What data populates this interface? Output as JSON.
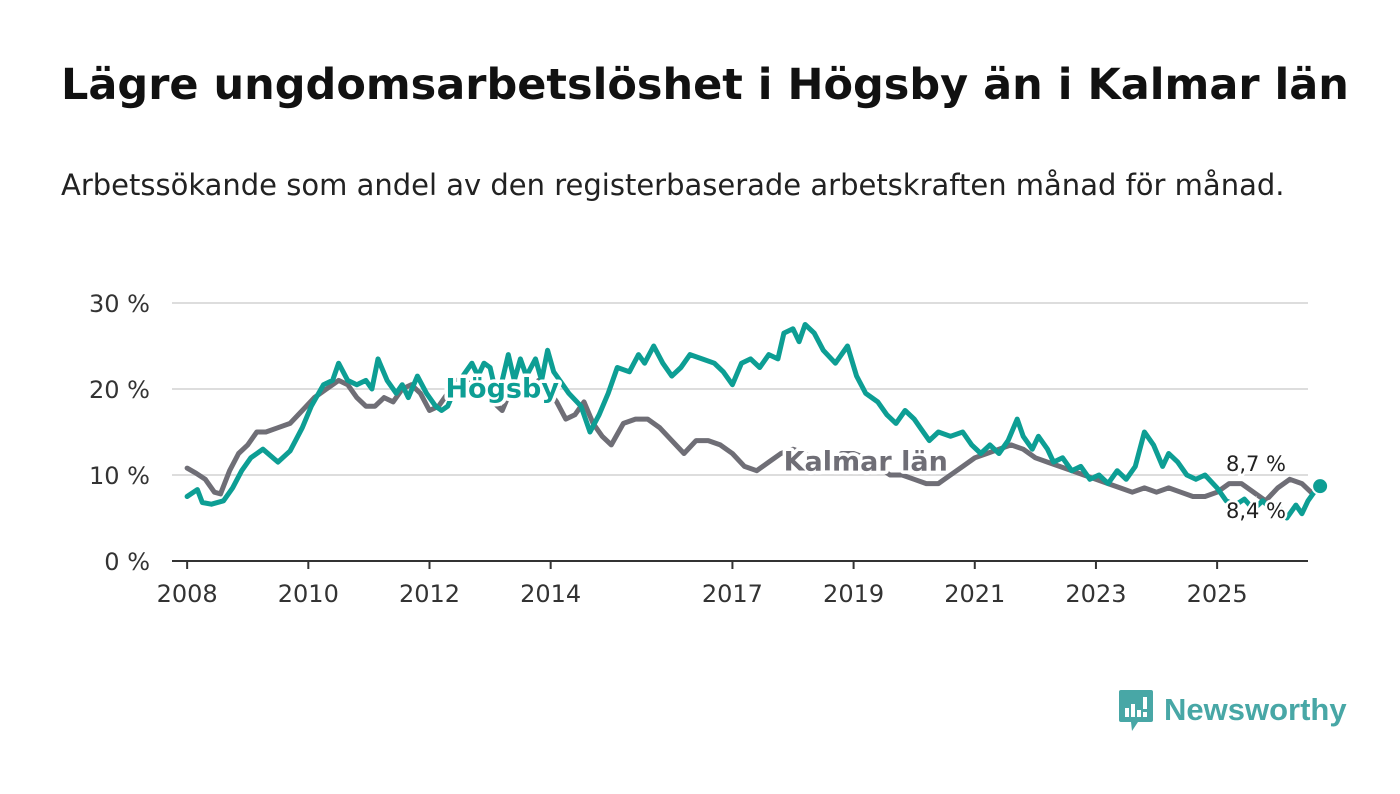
{
  "title": "Lägre ungdomsarbetslöshet i Högsby än i Kalmar län",
  "subtitle": "Arbetssökande som andel av den registerbaserade arbetskraften månad för månad.",
  "brand": {
    "name": "Newsworthy",
    "icon": "bar-chart-speech-bubble-icon",
    "color": "#48a7a6"
  },
  "colors": {
    "hogsby": "#0d9e94",
    "kalmar": "#6f6e76",
    "grid": "#dddddd",
    "axis": "#333333"
  },
  "chart_data": {
    "type": "line",
    "title": "Lägre ungdomsarbetslöshet i Högsby än i Kalmar län",
    "xlabel": "",
    "ylabel": "",
    "xlim": [
      2007.75,
      2026.5
    ],
    "ylim": [
      0,
      30
    ],
    "y_ticks": [
      0,
      10,
      20,
      30
    ],
    "y_tick_labels": [
      "0 %",
      "10 %",
      "20 %",
      "30 %"
    ],
    "x_ticks": [
      2008,
      2010,
      2012,
      2014,
      2017,
      2019,
      2021,
      2023,
      2025
    ],
    "x_tick_labels": [
      "2008",
      "2010",
      "2012",
      "2014",
      "2017",
      "2019",
      "2021",
      "2023",
      "2025"
    ],
    "grid": true,
    "series": [
      {
        "name": "Högsby",
        "label_at": [
          2013.2,
          19.0
        ],
        "end_label": "8,7 %",
        "points": [
          [
            2008.0,
            7.5
          ],
          [
            2008.17,
            8.3
          ],
          [
            2008.25,
            6.8
          ],
          [
            2008.4,
            6.6
          ],
          [
            2008.6,
            7.0
          ],
          [
            2008.75,
            8.5
          ],
          [
            2008.9,
            10.5
          ],
          [
            2009.05,
            12.0
          ],
          [
            2009.25,
            13.0
          ],
          [
            2009.5,
            11.5
          ],
          [
            2009.7,
            12.8
          ],
          [
            2009.9,
            15.5
          ],
          [
            2010.05,
            18.0
          ],
          [
            2010.25,
            20.5
          ],
          [
            2010.4,
            21.0
          ],
          [
            2010.5,
            23.0
          ],
          [
            2010.65,
            21.0
          ],
          [
            2010.8,
            20.5
          ],
          [
            2010.95,
            21.0
          ],
          [
            2011.05,
            20.0
          ],
          [
            2011.15,
            23.5
          ],
          [
            2011.3,
            21.0
          ],
          [
            2011.45,
            19.5
          ],
          [
            2011.55,
            20.5
          ],
          [
            2011.65,
            19.0
          ],
          [
            2011.8,
            21.5
          ],
          [
            2011.95,
            19.5
          ],
          [
            2012.1,
            18.0
          ],
          [
            2012.2,
            17.5
          ],
          [
            2012.3,
            18.0
          ],
          [
            2012.45,
            20.5
          ],
          [
            2012.6,
            22.0
          ],
          [
            2012.7,
            23.0
          ],
          [
            2012.8,
            21.5
          ],
          [
            2012.9,
            23.0
          ],
          [
            2013.0,
            22.5
          ],
          [
            2013.1,
            19.5
          ],
          [
            2013.2,
            21.0
          ],
          [
            2013.3,
            24.0
          ],
          [
            2013.4,
            21.0
          ],
          [
            2013.5,
            23.5
          ],
          [
            2013.6,
            21.5
          ],
          [
            2013.75,
            23.5
          ],
          [
            2013.85,
            21.0
          ],
          [
            2013.95,
            24.5
          ],
          [
            2014.05,
            22.0
          ],
          [
            2014.15,
            21.0
          ],
          [
            2014.3,
            19.5
          ],
          [
            2014.5,
            18.0
          ],
          [
            2014.65,
            15.0
          ],
          [
            2014.8,
            17.0
          ],
          [
            2014.95,
            19.5
          ],
          [
            2015.1,
            22.5
          ],
          [
            2015.3,
            22.0
          ],
          [
            2015.45,
            24.0
          ],
          [
            2015.55,
            23.0
          ],
          [
            2015.7,
            25.0
          ],
          [
            2015.85,
            23.0
          ],
          [
            2016.0,
            21.5
          ],
          [
            2016.15,
            22.5
          ],
          [
            2016.3,
            24.0
          ],
          [
            2016.5,
            23.5
          ],
          [
            2016.7,
            23.0
          ],
          [
            2016.85,
            22.0
          ],
          [
            2017.0,
            20.5
          ],
          [
            2017.15,
            23.0
          ],
          [
            2017.3,
            23.5
          ],
          [
            2017.45,
            22.5
          ],
          [
            2017.6,
            24.0
          ],
          [
            2017.75,
            23.5
          ],
          [
            2017.85,
            26.5
          ],
          [
            2018.0,
            27.0
          ],
          [
            2018.1,
            25.5
          ],
          [
            2018.2,
            27.5
          ],
          [
            2018.35,
            26.5
          ],
          [
            2018.5,
            24.5
          ],
          [
            2018.7,
            23.0
          ],
          [
            2018.9,
            25.0
          ],
          [
            2019.05,
            21.5
          ],
          [
            2019.2,
            19.5
          ],
          [
            2019.4,
            18.5
          ],
          [
            2019.55,
            17.0
          ],
          [
            2019.7,
            16.0
          ],
          [
            2019.85,
            17.5
          ],
          [
            2020.0,
            16.5
          ],
          [
            2020.1,
            15.5
          ],
          [
            2020.25,
            14.0
          ],
          [
            2020.4,
            15.0
          ],
          [
            2020.6,
            14.5
          ],
          [
            2020.8,
            15.0
          ],
          [
            2020.95,
            13.5
          ],
          [
            2021.1,
            12.5
          ],
          [
            2021.25,
            13.5
          ],
          [
            2021.4,
            12.5
          ],
          [
            2021.55,
            14.0
          ],
          [
            2021.7,
            16.5
          ],
          [
            2021.8,
            14.5
          ],
          [
            2021.95,
            13.0
          ],
          [
            2022.05,
            14.5
          ],
          [
            2022.2,
            13.0
          ],
          [
            2022.3,
            11.5
          ],
          [
            2022.45,
            12.0
          ],
          [
            2022.6,
            10.5
          ],
          [
            2022.75,
            11.0
          ],
          [
            2022.9,
            9.5
          ],
          [
            2023.05,
            10.0
          ],
          [
            2023.2,
            9.0
          ],
          [
            2023.35,
            10.5
          ],
          [
            2023.5,
            9.5
          ],
          [
            2023.65,
            11.0
          ],
          [
            2023.8,
            15.0
          ],
          [
            2023.95,
            13.5
          ],
          [
            2024.1,
            11.0
          ],
          [
            2024.2,
            12.5
          ],
          [
            2024.35,
            11.5
          ],
          [
            2024.5,
            10.0
          ],
          [
            2024.65,
            9.5
          ],
          [
            2024.8,
            10.0
          ],
          [
            2025.0,
            8.5
          ],
          [
            2025.15,
            7.0
          ],
          [
            2025.3,
            6.5
          ],
          [
            2025.45,
            7.2
          ],
          [
            2025.6,
            6.0
          ],
          [
            2025.75,
            7.0
          ],
          [
            2025.9,
            6.0
          ],
          [
            2026.0,
            6.5
          ],
          [
            2026.15,
            5.0
          ],
          [
            2026.3,
            6.5
          ],
          [
            2026.4,
            5.5
          ],
          [
            2026.5,
            7.0
          ],
          [
            2026.6,
            8.0
          ],
          [
            2026.7,
            8.7
          ]
        ]
      },
      {
        "name": "Kalmar län",
        "label_at": [
          2019.2,
          10.5
        ],
        "end_label": "8,4 %",
        "points": [
          [
            2008.0,
            10.8
          ],
          [
            2008.15,
            10.2
          ],
          [
            2008.3,
            9.5
          ],
          [
            2008.45,
            8.0
          ],
          [
            2008.55,
            7.8
          ],
          [
            2008.7,
            10.5
          ],
          [
            2008.85,
            12.5
          ],
          [
            2009.0,
            13.5
          ],
          [
            2009.15,
            15.0
          ],
          [
            2009.3,
            15.0
          ],
          [
            2009.5,
            15.5
          ],
          [
            2009.7,
            16.0
          ],
          [
            2009.9,
            17.5
          ],
          [
            2010.1,
            19.0
          ],
          [
            2010.3,
            20.0
          ],
          [
            2010.5,
            21.0
          ],
          [
            2010.65,
            20.5
          ],
          [
            2010.8,
            19.0
          ],
          [
            2010.95,
            18.0
          ],
          [
            2011.1,
            18.0
          ],
          [
            2011.25,
            19.0
          ],
          [
            2011.4,
            18.5
          ],
          [
            2011.55,
            20.0
          ],
          [
            2011.7,
            20.5
          ],
          [
            2011.85,
            19.5
          ],
          [
            2012.0,
            17.5
          ],
          [
            2012.15,
            18.0
          ],
          [
            2012.3,
            19.5
          ],
          [
            2012.45,
            21.0
          ],
          [
            2012.6,
            21.0
          ],
          [
            2012.75,
            20.0
          ],
          [
            2012.9,
            20.5
          ],
          [
            2013.05,
            18.5
          ],
          [
            2013.2,
            17.5
          ],
          [
            2013.35,
            20.0
          ],
          [
            2013.5,
            20.5
          ],
          [
            2013.65,
            19.5
          ],
          [
            2013.8,
            21.0
          ],
          [
            2013.95,
            20.0
          ],
          [
            2014.1,
            18.5
          ],
          [
            2014.25,
            16.5
          ],
          [
            2014.4,
            17.0
          ],
          [
            2014.55,
            18.5
          ],
          [
            2014.7,
            16.0
          ],
          [
            2014.85,
            14.5
          ],
          [
            2015.0,
            13.5
          ],
          [
            2015.2,
            16.0
          ],
          [
            2015.4,
            16.5
          ],
          [
            2015.6,
            16.5
          ],
          [
            2015.8,
            15.5
          ],
          [
            2016.0,
            14.0
          ],
          [
            2016.2,
            12.5
          ],
          [
            2016.4,
            14.0
          ],
          [
            2016.6,
            14.0
          ],
          [
            2016.8,
            13.5
          ],
          [
            2017.0,
            12.5
          ],
          [
            2017.2,
            11.0
          ],
          [
            2017.4,
            10.5
          ],
          [
            2017.6,
            11.5
          ],
          [
            2017.8,
            12.5
          ],
          [
            2018.0,
            13.0
          ],
          [
            2018.2,
            12.5
          ],
          [
            2018.4,
            11.5
          ],
          [
            2018.6,
            11.0
          ],
          [
            2018.8,
            12.5
          ],
          [
            2019.0,
            12.5
          ],
          [
            2019.2,
            12.0
          ],
          [
            2019.4,
            11.0
          ],
          [
            2019.6,
            10.0
          ],
          [
            2019.8,
            10.0
          ],
          [
            2020.0,
            9.5
          ],
          [
            2020.2,
            9.0
          ],
          [
            2020.4,
            9.0
          ],
          [
            2020.6,
            10.0
          ],
          [
            2020.8,
            11.0
          ],
          [
            2021.0,
            12.0
          ],
          [
            2021.2,
            12.5
          ],
          [
            2021.4,
            13.0
          ],
          [
            2021.6,
            13.5
          ],
          [
            2021.8,
            13.0
          ],
          [
            2022.0,
            12.0
          ],
          [
            2022.2,
            11.5
          ],
          [
            2022.4,
            11.0
          ],
          [
            2022.6,
            10.5
          ],
          [
            2022.8,
            10.0
          ],
          [
            2023.0,
            9.5
          ],
          [
            2023.2,
            9.0
          ],
          [
            2023.4,
            8.5
          ],
          [
            2023.6,
            8.0
          ],
          [
            2023.8,
            8.5
          ],
          [
            2024.0,
            8.0
          ],
          [
            2024.2,
            8.5
          ],
          [
            2024.4,
            8.0
          ],
          [
            2024.6,
            7.5
          ],
          [
            2024.8,
            7.5
          ],
          [
            2025.0,
            8.0
          ],
          [
            2025.2,
            9.0
          ],
          [
            2025.4,
            9.0
          ],
          [
            2025.6,
            8.0
          ],
          [
            2025.8,
            7.0
          ],
          [
            2026.0,
            8.5
          ],
          [
            2026.2,
            9.5
          ],
          [
            2026.4,
            9.0
          ],
          [
            2026.55,
            8.0
          ],
          [
            2026.7,
            8.4
          ]
        ]
      }
    ]
  }
}
